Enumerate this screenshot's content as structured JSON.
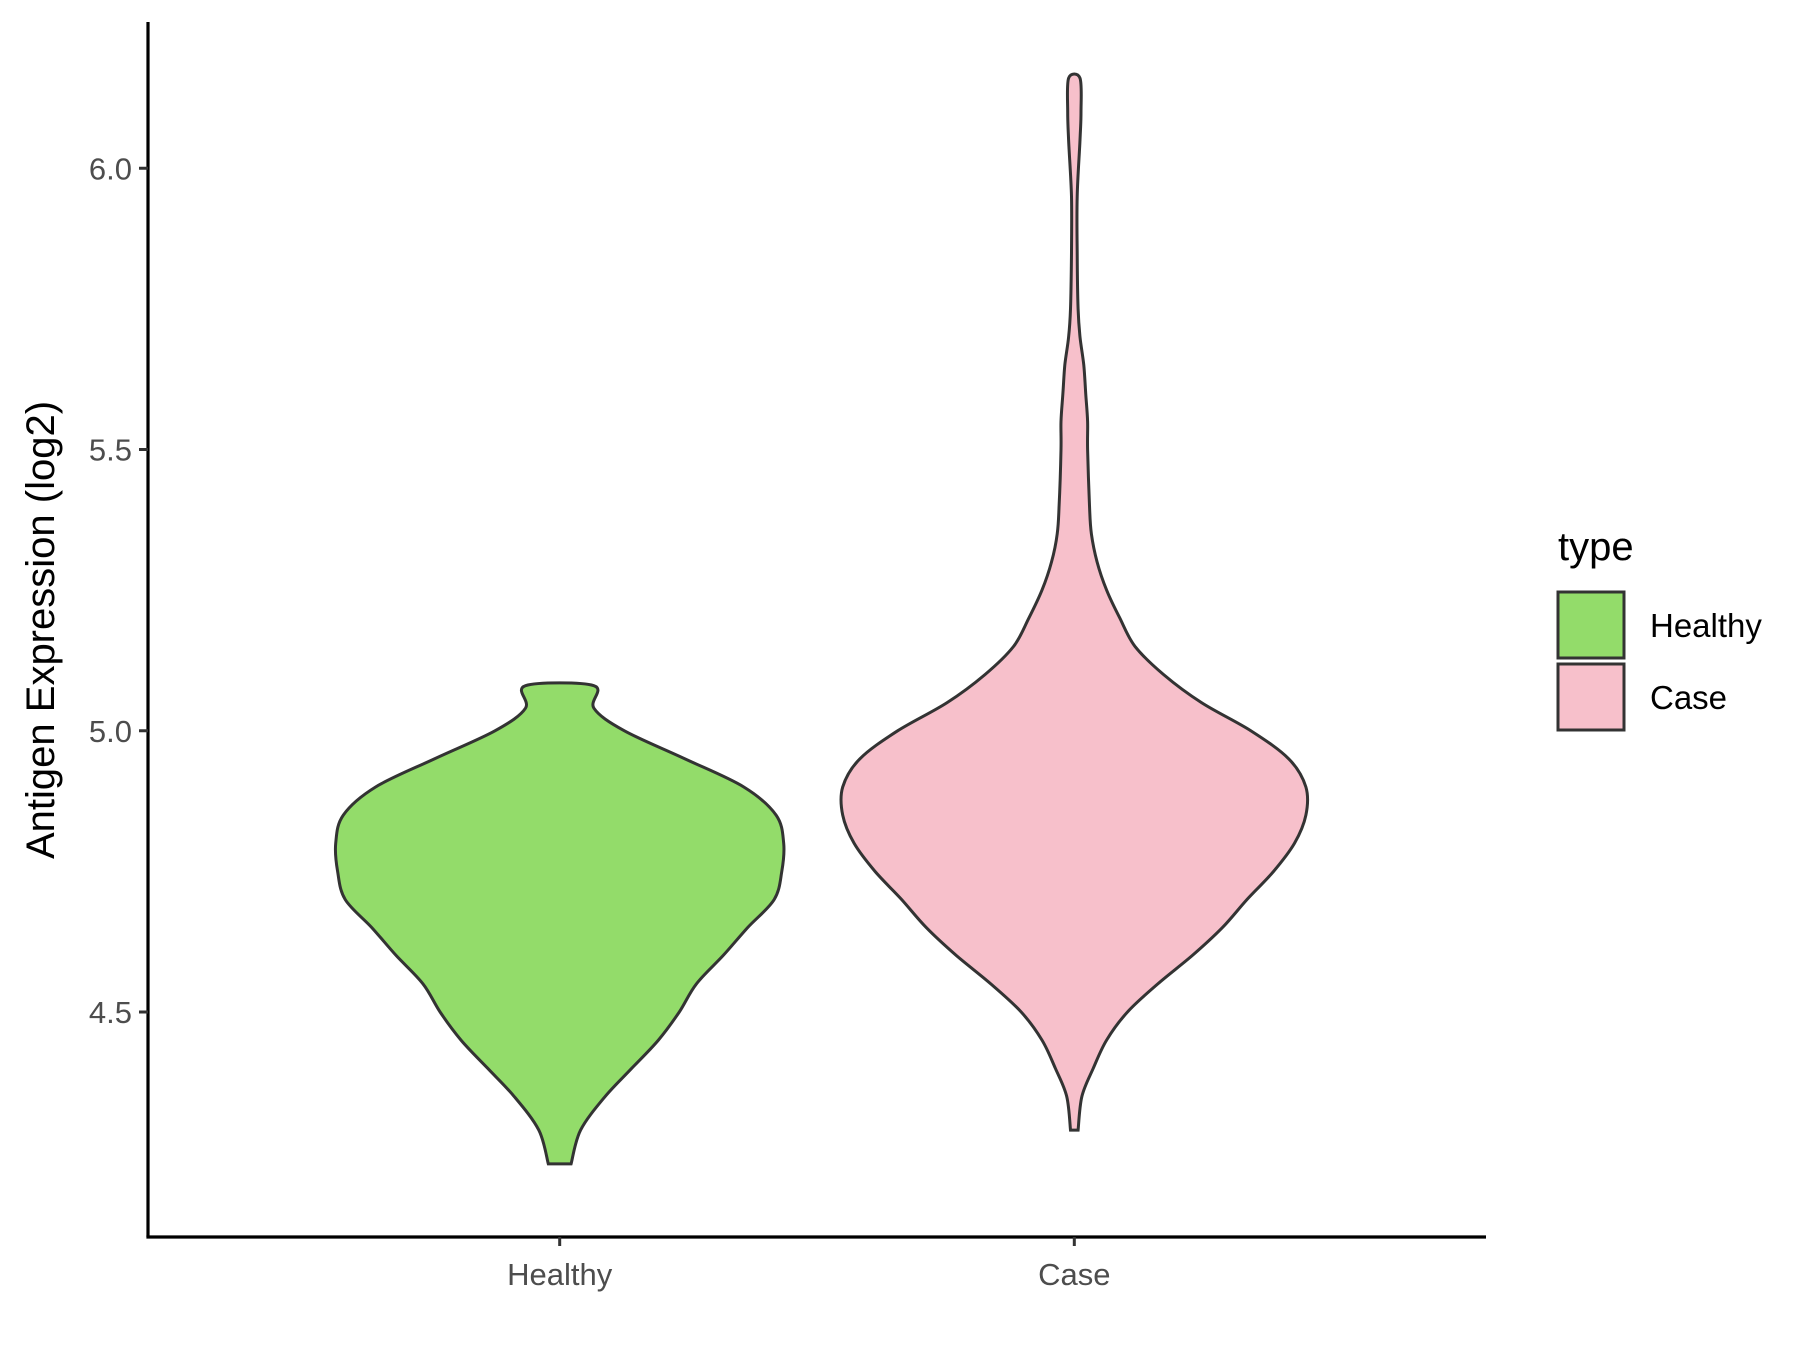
{
  "chart_data": {
    "type": "violin",
    "xlabel": "",
    "ylabel": "Antigen Expression (log2)",
    "categories": [
      "Healthy",
      "Case"
    ],
    "ylim": [
      4.1,
      6.26
    ],
    "yticks": [
      4.5,
      5.0,
      5.5,
      6.0
    ],
    "ytick_labels": [
      "4.5",
      "5.0",
      "5.5",
      "6.0"
    ],
    "grid": false,
    "legend": {
      "title": "type",
      "placement": "right",
      "entries": [
        {
          "label": "Healthy",
          "color": "#93dc6a"
        },
        {
          "label": "Case",
          "color": "#f7c0cb"
        }
      ]
    },
    "series": [
      {
        "name": "Healthy",
        "color": "#93dc6a",
        "ymin": 4.23,
        "ymax": 5.08,
        "density_profile": [
          [
            4.23,
            0.06
          ],
          [
            4.29,
            0.11
          ],
          [
            4.35,
            0.24
          ],
          [
            4.4,
            0.38
          ],
          [
            4.45,
            0.52
          ],
          [
            4.5,
            0.63
          ],
          [
            4.55,
            0.72
          ],
          [
            4.6,
            0.86
          ],
          [
            4.65,
            0.99
          ],
          [
            4.7,
            1.13
          ],
          [
            4.75,
            1.17
          ],
          [
            4.8,
            1.18
          ],
          [
            4.85,
            1.14
          ],
          [
            4.9,
            0.97
          ],
          [
            4.95,
            0.66
          ],
          [
            5.0,
            0.34
          ],
          [
            5.04,
            0.18
          ],
          [
            5.08,
            0.18
          ]
        ]
      },
      {
        "name": "Case",
        "color": "#f7c0cb",
        "ymin": 4.29,
        "ymax": 6.16,
        "density_profile": [
          [
            4.29,
            0.02
          ],
          [
            4.35,
            0.04
          ],
          [
            4.4,
            0.1
          ],
          [
            4.45,
            0.17
          ],
          [
            4.5,
            0.28
          ],
          [
            4.55,
            0.44
          ],
          [
            4.6,
            0.62
          ],
          [
            4.65,
            0.78
          ],
          [
            4.7,
            0.91
          ],
          [
            4.75,
            1.05
          ],
          [
            4.8,
            1.16
          ],
          [
            4.85,
            1.22
          ],
          [
            4.9,
            1.22
          ],
          [
            4.95,
            1.13
          ],
          [
            5.0,
            0.93
          ],
          [
            5.05,
            0.67
          ],
          [
            5.1,
            0.47
          ],
          [
            5.15,
            0.32
          ],
          [
            5.2,
            0.24
          ],
          [
            5.25,
            0.17
          ],
          [
            5.3,
            0.12
          ],
          [
            5.35,
            0.09
          ],
          [
            5.4,
            0.08
          ],
          [
            5.5,
            0.07
          ],
          [
            5.55,
            0.07
          ],
          [
            5.6,
            0.06
          ],
          [
            5.65,
            0.05
          ],
          [
            5.7,
            0.03
          ],
          [
            5.75,
            0.02
          ],
          [
            5.85,
            0.015
          ],
          [
            5.95,
            0.015
          ],
          [
            6.05,
            0.03
          ],
          [
            6.1,
            0.035
          ],
          [
            6.16,
            0.03
          ]
        ]
      }
    ]
  }
}
